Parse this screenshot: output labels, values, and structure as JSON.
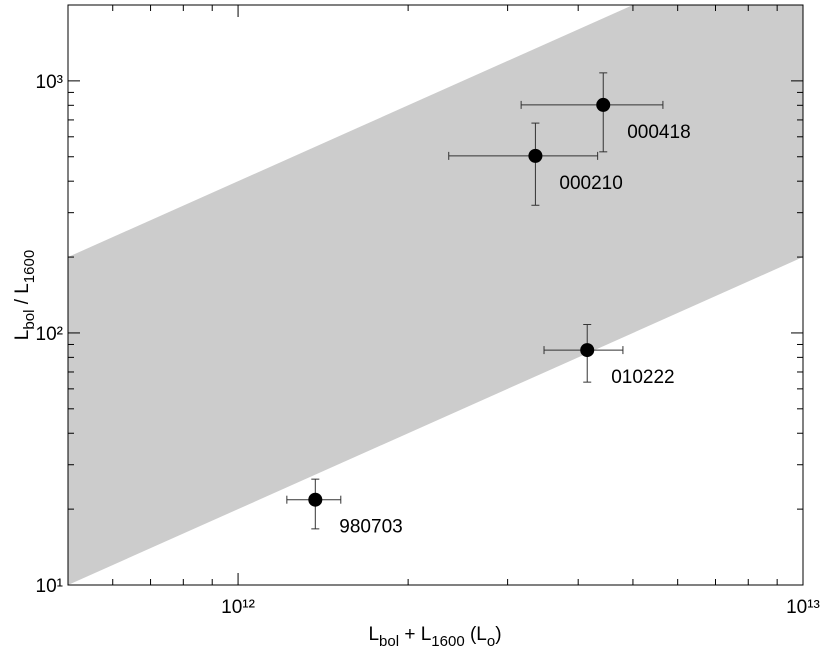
{
  "chart_data": {
    "type": "scatter",
    "log_x": true,
    "log_y": true,
    "xlim": [
      500000000000.0,
      10000000000000.0
    ],
    "ylim": [
      10,
      2000
    ],
    "xticks": [
      {
        "value": 1000000000000.0,
        "label": "10¹²"
      },
      {
        "value": 10000000000000.0,
        "label": "10¹³"
      }
    ],
    "yticks": [
      {
        "value": 10,
        "label": "10¹"
      },
      {
        "value": 100,
        "label": "10²"
      },
      {
        "value": 1000,
        "label": "10³"
      }
    ],
    "xticks_minor": [
      600000000000.0,
      700000000000.0,
      800000000000.0,
      900000000000.0,
      2000000000000.0,
      3000000000000.0,
      4000000000000.0,
      5000000000000.0,
      6000000000000.0,
      7000000000000.0,
      8000000000000.0,
      9000000000000.0
    ],
    "yticks_minor": [
      20,
      30,
      40,
      50,
      60,
      70,
      80,
      90,
      200,
      300,
      400,
      500,
      600,
      700,
      800,
      900
    ],
    "xlabel": [
      "L",
      "bol",
      " + L",
      "1600",
      "  (L",
      "o",
      ")"
    ],
    "ylabel": [
      "L",
      "bol",
      " / L",
      "1600"
    ],
    "band": {
      "color": "#cccccc",
      "x": [
        500000000000.0,
        10000000000000.0
      ],
      "lower": [
        10,
        200
      ],
      "upper": [
        200,
        4000
      ]
    },
    "marker_color": "#000000",
    "points": [
      {
        "label": "000418",
        "x": 4430000000000.0,
        "y": 803,
        "x_range": [
          3170000000000.0,
          5650000000000.0
        ],
        "y_range": [
          523,
          1076
        ]
      },
      {
        "label": "000210",
        "x": 3360000000000.0,
        "y": 504,
        "x_range": [
          2360000000000.0,
          4330000000000.0
        ],
        "y_range": [
          321,
          680
        ]
      },
      {
        "label": "010222",
        "x": 4150000000000.0,
        "y": 85.5,
        "x_range": [
          3480000000000.0,
          4800000000000.0
        ],
        "y_range": [
          63.8,
          108
        ]
      },
      {
        "label": "980703",
        "x": 1370000000000.0,
        "y": 21.8,
        "x_range": [
          1220000000000.0,
          1520000000000.0
        ],
        "y_range": [
          16.7,
          26.3
        ]
      }
    ]
  }
}
